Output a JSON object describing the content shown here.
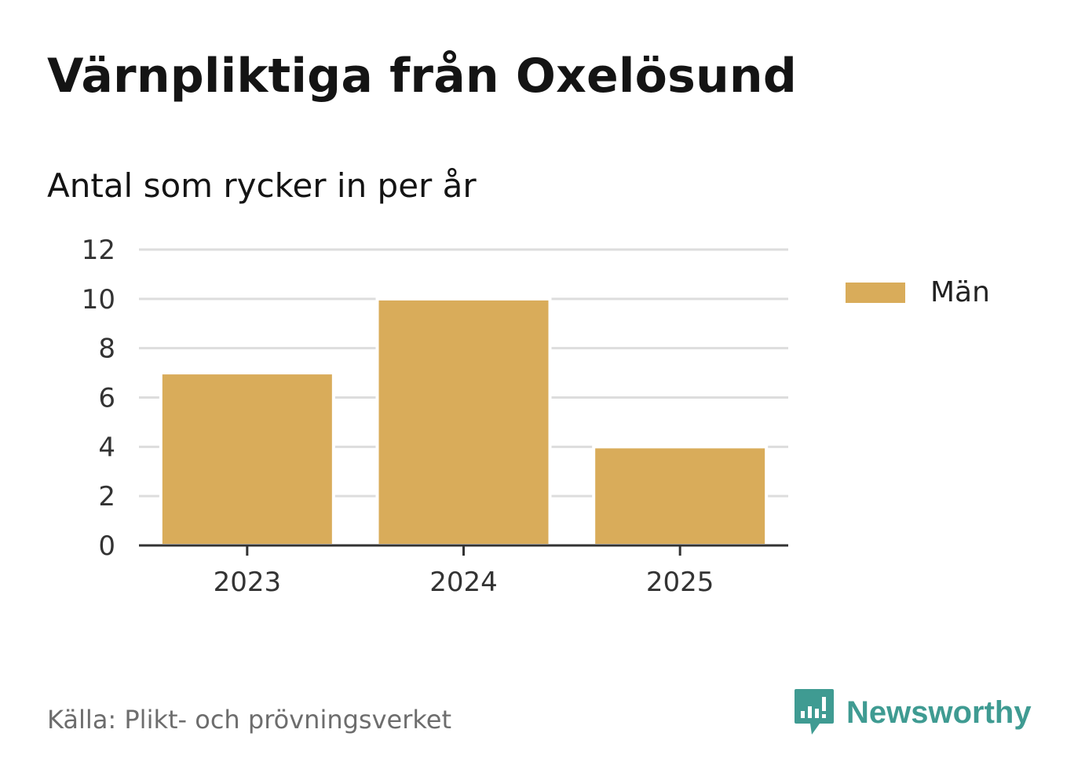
{
  "header": {
    "title": "Värnpliktiga från Oxelösund",
    "subtitle": "Antal som rycker in per år"
  },
  "chart_data": {
    "type": "bar",
    "categories": [
      "2023",
      "2024",
      "2025"
    ],
    "series": [
      {
        "name": "Män",
        "values": [
          7,
          10,
          4
        ],
        "color": "#d9ac5a"
      }
    ],
    "ylim": [
      0,
      12
    ],
    "yticks": [
      0,
      2,
      4,
      6,
      8,
      10,
      12
    ],
    "xlabel": "",
    "ylabel": "",
    "grid": true,
    "legend_position": "right"
  },
  "legend": {
    "items": [
      {
        "label": "Män",
        "color": "#d9ac5a"
      }
    ]
  },
  "footer": {
    "source": "Källa: Plikt- och prövningsverket",
    "brand": "Newsworthy",
    "brand_icon": "bar-chart-speech-bubble-icon",
    "brand_color": "#3f9b92"
  }
}
